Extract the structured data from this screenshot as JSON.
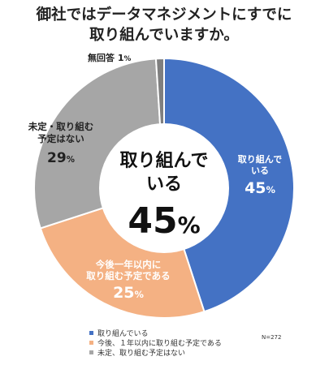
{
  "title_lines": [
    "御社ではデータマネジメントにすでに",
    "取り組んでいますか。"
  ],
  "chart_data": {
    "type": "pie",
    "title": "御社ではデータマネジメントにすでに取り組んでいますか。",
    "slices": [
      {
        "name": "取り組んでいる",
        "value": 45,
        "color": "#4472c4"
      },
      {
        "name": "今後、1年以内に取り組む予定である",
        "value": 25,
        "color": "#f4b183"
      },
      {
        "name": "未定、取り組む予定はない",
        "value": 29,
        "color": "#a6a6a6"
      },
      {
        "name": "無回答",
        "value": 1,
        "color": "#7f7f7f"
      }
    ],
    "slice_labels": [
      {
        "lines": [
          "取り組んで",
          "いる"
        ],
        "pct": "45",
        "unit": "%"
      },
      {
        "lines": [
          "今後一年以内に",
          "取り組む予定である"
        ],
        "pct": "25",
        "unit": "%"
      },
      {
        "lines": [
          "未定・取り組む",
          "予定はない"
        ],
        "pct": "29",
        "unit": "%"
      },
      {
        "lines": [
          "無回答"
        ],
        "pct": "1",
        "unit": "%"
      }
    ],
    "center_label": {
      "lines": [
        "取り組んで",
        "いる"
      ],
      "pct": "45",
      "unit": "%"
    },
    "legend": [
      "取り組んでいる",
      "今後、１年以内に取り組む予定である",
      "未定、取り組む予定はない"
    ],
    "legend_placement": "bottom-left",
    "sample_size": "N=272"
  }
}
